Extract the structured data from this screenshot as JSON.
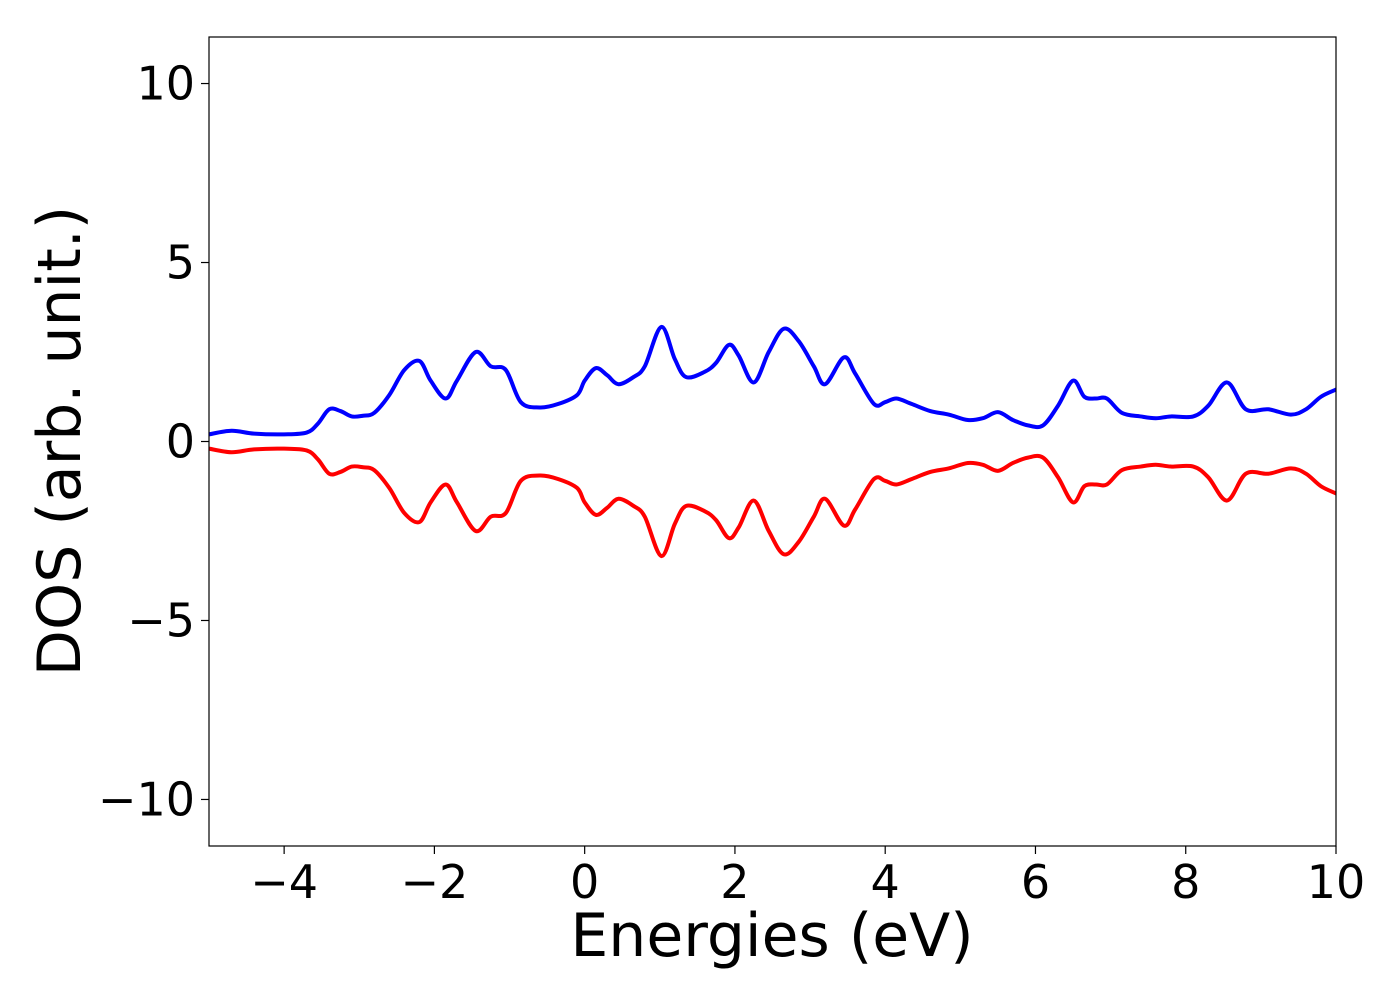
{
  "chart_data": {
    "type": "line",
    "title": "",
    "xlabel": "Energies (eV)",
    "ylabel": "DOS (arb. unit.)",
    "xlim": [
      -5,
      10
    ],
    "ylim": [
      -11.3,
      11.3
    ],
    "xticks": [
      -4,
      -2,
      0,
      2,
      4,
      6,
      8,
      10
    ],
    "xtick_labels": [
      "−4",
      "−2",
      "0",
      "2",
      "4",
      "6",
      "8",
      "10"
    ],
    "yticks": [
      10,
      5,
      0,
      -5,
      -10
    ],
    "ytick_labels": [
      "10",
      "5",
      "0",
      "−5",
      "−10"
    ],
    "grid": false,
    "legend": "none",
    "series": [
      {
        "color": "#0000ff",
        "x": [
          -5.0,
          -4.7,
          -4.4,
          -4.0,
          -3.7,
          -3.55,
          -3.4,
          -3.25,
          -3.1,
          -2.95,
          -2.8,
          -2.6,
          -2.4,
          -2.2,
          -2.05,
          -1.85,
          -1.7,
          -1.45,
          -1.25,
          -1.05,
          -0.85,
          -0.6,
          -0.35,
          -0.1,
          0.0,
          0.15,
          0.3,
          0.45,
          0.65,
          0.8,
          1.02,
          1.2,
          1.35,
          1.6,
          1.75,
          1.92,
          2.05,
          2.25,
          2.45,
          2.65,
          2.85,
          3.05,
          3.2,
          3.45,
          3.6,
          3.85,
          4.0,
          4.15,
          4.35,
          4.6,
          4.85,
          5.1,
          5.3,
          5.5,
          5.7,
          5.9,
          6.1,
          6.3,
          6.5,
          6.65,
          6.8,
          6.95,
          7.15,
          7.4,
          7.6,
          7.8,
          8.1,
          8.3,
          8.55,
          8.8,
          9.1,
          9.4,
          9.6,
          9.8,
          10.0
        ],
        "y": [
          0.2,
          0.3,
          0.22,
          0.2,
          0.25,
          0.5,
          0.9,
          0.85,
          0.7,
          0.72,
          0.8,
          1.3,
          2.0,
          2.25,
          1.7,
          1.2,
          1.7,
          2.5,
          2.1,
          2.0,
          1.1,
          0.95,
          1.05,
          1.3,
          1.7,
          2.05,
          1.85,
          1.6,
          1.8,
          2.1,
          3.2,
          2.3,
          1.8,
          1.95,
          2.2,
          2.7,
          2.4,
          1.65,
          2.5,
          3.15,
          2.8,
          2.1,
          1.6,
          2.35,
          1.9,
          1.05,
          1.1,
          1.2,
          1.05,
          0.85,
          0.75,
          0.6,
          0.65,
          0.82,
          0.6,
          0.45,
          0.45,
          1.0,
          1.7,
          1.25,
          1.2,
          1.2,
          0.8,
          0.7,
          0.65,
          0.7,
          0.7,
          1.0,
          1.65,
          0.9,
          0.9,
          0.75,
          0.9,
          1.25,
          1.45
        ]
      },
      {
        "color": "#ff0000",
        "x": [
          -5.0,
          -4.7,
          -4.4,
          -4.0,
          -3.7,
          -3.55,
          -3.4,
          -3.25,
          -3.1,
          -2.95,
          -2.8,
          -2.6,
          -2.4,
          -2.2,
          -2.05,
          -1.85,
          -1.7,
          -1.45,
          -1.25,
          -1.05,
          -0.85,
          -0.6,
          -0.35,
          -0.1,
          0.0,
          0.15,
          0.3,
          0.45,
          0.65,
          0.8,
          1.02,
          1.2,
          1.35,
          1.6,
          1.75,
          1.92,
          2.05,
          2.25,
          2.45,
          2.65,
          2.85,
          3.05,
          3.2,
          3.45,
          3.6,
          3.85,
          4.0,
          4.15,
          4.35,
          4.6,
          4.85,
          5.1,
          5.3,
          5.5,
          5.7,
          5.9,
          6.1,
          6.3,
          6.5,
          6.65,
          6.8,
          6.95,
          7.15,
          7.4,
          7.6,
          7.8,
          8.1,
          8.3,
          8.55,
          8.8,
          9.1,
          9.4,
          9.6,
          9.8,
          10.0
        ],
        "y": [
          -0.2,
          -0.3,
          -0.22,
          -0.2,
          -0.25,
          -0.5,
          -0.9,
          -0.85,
          -0.7,
          -0.72,
          -0.8,
          -1.3,
          -2.0,
          -2.25,
          -1.7,
          -1.2,
          -1.7,
          -2.5,
          -2.1,
          -2.0,
          -1.1,
          -0.95,
          -1.05,
          -1.3,
          -1.7,
          -2.05,
          -1.85,
          -1.6,
          -1.8,
          -2.1,
          -3.2,
          -2.3,
          -1.8,
          -1.95,
          -2.2,
          -2.7,
          -2.4,
          -1.65,
          -2.5,
          -3.15,
          -2.8,
          -2.1,
          -1.6,
          -2.35,
          -1.9,
          -1.05,
          -1.1,
          -1.2,
          -1.05,
          -0.85,
          -0.75,
          -0.6,
          -0.65,
          -0.82,
          -0.6,
          -0.45,
          -0.45,
          -1.0,
          -1.7,
          -1.25,
          -1.2,
          -1.2,
          -0.8,
          -0.7,
          -0.65,
          -0.7,
          -0.7,
          -1.0,
          -1.65,
          -0.9,
          -0.9,
          -0.75,
          -0.9,
          -1.25,
          -1.45
        ]
      }
    ]
  }
}
